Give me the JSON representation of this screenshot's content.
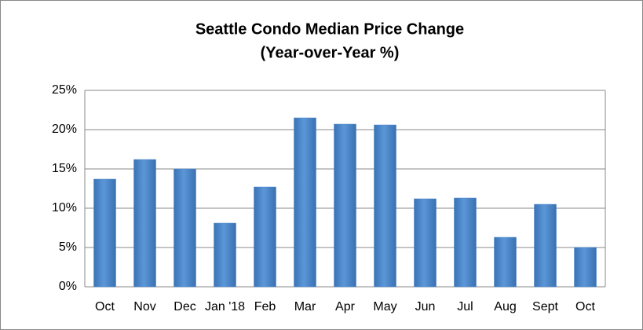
{
  "chart_data": {
    "type": "bar",
    "title": "Seattle Condo Median Price Change",
    "subtitle": "(Year-over-Year %)",
    "categories": [
      "Oct",
      "Nov",
      "Dec",
      "Jan '18",
      "Feb",
      "Mar",
      "Apr",
      "May",
      "Jun",
      "Jul",
      "Aug",
      "Sept",
      "Oct"
    ],
    "values": [
      13.7,
      16.2,
      15.0,
      8.1,
      12.7,
      21.5,
      20.7,
      20.6,
      11.2,
      11.3,
      6.3,
      10.5,
      5.0
    ],
    "color": "#4a86c8",
    "ylim": [
      0,
      25
    ],
    "yticks": [
      {
        "value": 0,
        "label": "0%"
      },
      {
        "value": 5,
        "label": "5%"
      },
      {
        "value": 10,
        "label": "10%"
      },
      {
        "value": 15,
        "label": "15%"
      },
      {
        "value": 20,
        "label": "20%"
      },
      {
        "value": 25,
        "label": "25%"
      }
    ],
    "grid": true
  }
}
